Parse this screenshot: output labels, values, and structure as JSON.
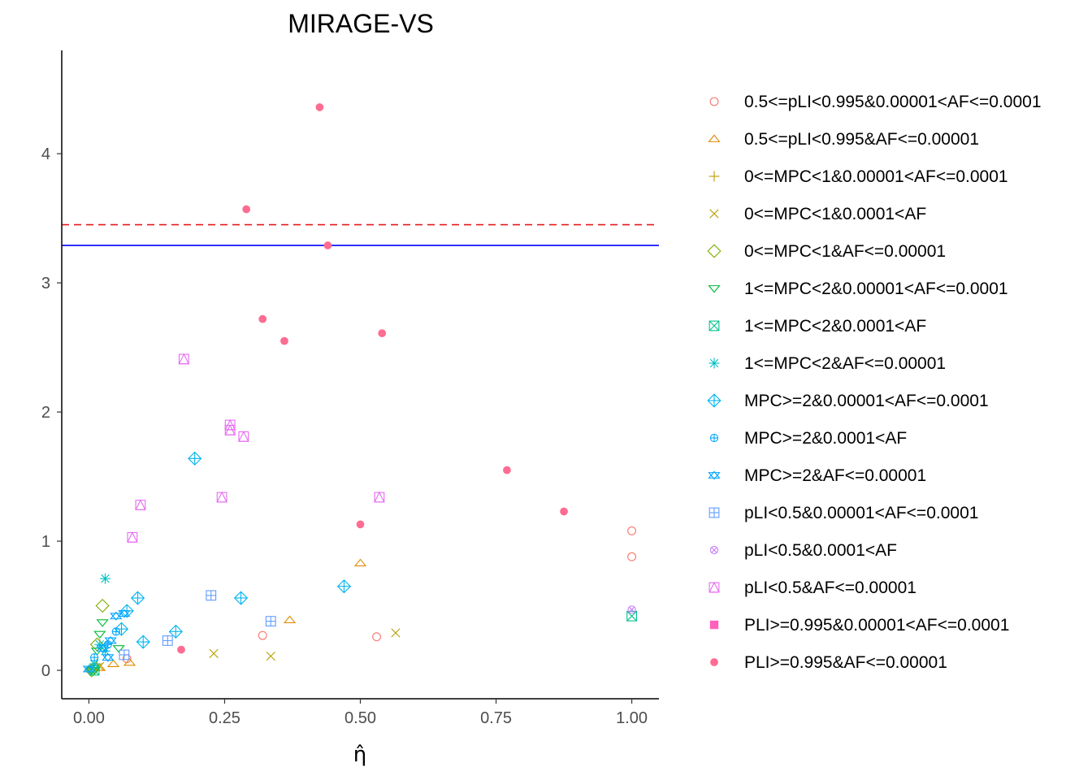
{
  "chart_data": {
    "type": "scatter",
    "title": "MIRAGE-VS",
    "xlabel": "η̂",
    "ylabel": "",
    "xlim": [
      -0.05,
      1.05
    ],
    "ylim": [
      -0.22,
      4.8
    ],
    "x_ticks": [
      "0.00",
      "0.25",
      "0.50",
      "0.75",
      "1.00"
    ],
    "x_tick_values": [
      0,
      0.25,
      0.5,
      0.75,
      1.0
    ],
    "y_ticks": [
      "0",
      "1",
      "2",
      "3",
      "4"
    ],
    "y_tick_values": [
      0,
      1,
      2,
      3,
      4
    ],
    "grid": false,
    "legend_position": "right",
    "reference_lines": [
      {
        "y": 3.45,
        "color": "#e41a1c",
        "style": "dashed"
      },
      {
        "y": 3.29,
        "color": "#0000ff",
        "style": "solid"
      }
    ],
    "series": [
      {
        "name": "0.5<=pLI<0.995&0.00001<AF<=0.0001",
        "color": "#F8766D",
        "shape": "circle-open",
        "points": [
          [
            1.0,
            1.08
          ],
          [
            1.0,
            0.88
          ],
          [
            0.32,
            0.27
          ],
          [
            0.53,
            0.26
          ],
          [
            0.07,
            0.09
          ]
        ]
      },
      {
        "name": "0.5<=pLI<0.995&AF<=0.00001",
        "color": "#DE8C00",
        "shape": "triangle-open",
        "points": [
          [
            0.5,
            0.83
          ],
          [
            0.37,
            0.39
          ],
          [
            0.075,
            0.06
          ],
          [
            0.045,
            0.05
          ],
          [
            0.02,
            0.02
          ]
        ]
      },
      {
        "name": "0<=MPC<1&0.00001<AF<=0.0001",
        "color": "#B79F00",
        "shape": "plus",
        "points": [
          [
            0.01,
            0.02
          ],
          [
            0.005,
            0.01
          ],
          [
            0.015,
            0.05
          ]
        ]
      },
      {
        "name": "0<=MPC<1&0.0001<AF",
        "color": "#B79F00",
        "shape": "cross",
        "points": [
          [
            0.565,
            0.29
          ],
          [
            0.23,
            0.13
          ],
          [
            0.335,
            0.11
          ],
          [
            0.02,
            0.03
          ]
        ]
      },
      {
        "name": "0<=MPC<1&AF<=0.00001",
        "color": "#7CAE00",
        "shape": "diamond-open",
        "points": [
          [
            0.025,
            0.5
          ],
          [
            0.015,
            0.2
          ],
          [
            0.008,
            0.01
          ],
          [
            0.005,
            0.0
          ]
        ]
      },
      {
        "name": "1<=MPC<2&0.00001<AF<=0.0001",
        "color": "#00BA38",
        "shape": "triangle-down-open",
        "points": [
          [
            0.025,
            0.37
          ],
          [
            0.02,
            0.28
          ],
          [
            0.055,
            0.17
          ],
          [
            0.015,
            0.15
          ],
          [
            0.01,
            0.0
          ],
          [
            0.005,
            0.0
          ]
        ]
      },
      {
        "name": "1<=MPC<2&0.0001<AF",
        "color": "#00C08B",
        "shape": "square-cross",
        "points": [
          [
            1.0,
            0.42
          ],
          [
            0.01,
            0.0
          ]
        ]
      },
      {
        "name": "1<=MPC<2&AF<=0.00001",
        "color": "#00BFC4",
        "shape": "asterisk",
        "points": [
          [
            0.03,
            0.71
          ],
          [
            0.02,
            0.2
          ],
          [
            0.03,
            0.15
          ],
          [
            0.01,
            0.05
          ]
        ]
      },
      {
        "name": "MPC>=2&0.00001<AF<=0.0001",
        "color": "#00B4F0",
        "shape": "diamond-plus",
        "points": [
          [
            0.195,
            1.64
          ],
          [
            0.47,
            0.65
          ],
          [
            0.28,
            0.56
          ],
          [
            0.09,
            0.56
          ],
          [
            0.07,
            0.46
          ],
          [
            0.16,
            0.3
          ],
          [
            0.1,
            0.22
          ],
          [
            0.06,
            0.32
          ]
        ]
      },
      {
        "name": "MPC>=2&0.0001<AF",
        "color": "#00A9FF",
        "shape": "circle-plus",
        "points": [
          [
            0.05,
            0.3
          ],
          [
            0.035,
            0.2
          ],
          [
            0.01,
            0.1
          ]
        ]
      },
      {
        "name": "MPC>=2&AF<=0.00001",
        "color": "#00A5FF",
        "shape": "star-of-david",
        "points": [
          [
            0.065,
            0.44
          ],
          [
            0.05,
            0.42
          ],
          [
            0.04,
            0.23
          ],
          [
            0.025,
            0.17
          ],
          [
            0.035,
            0.1
          ],
          [
            0.0,
            0.01
          ]
        ]
      },
      {
        "name": "pLI<0.5&0.00001<AF<=0.0001",
        "color": "#619CFF",
        "shape": "square-plus",
        "points": [
          [
            0.225,
            0.58
          ],
          [
            0.335,
            0.38
          ],
          [
            0.145,
            0.23
          ],
          [
            0.065,
            0.12
          ]
        ]
      },
      {
        "name": "pLI<0.5&0.0001<AF",
        "color": "#C77CFF",
        "shape": "circle-cross",
        "points": [
          [
            1.0,
            0.47
          ]
        ]
      },
      {
        "name": "pLI<0.5&AF<=0.00001",
        "color": "#E76BF3",
        "shape": "square-triangle",
        "points": [
          [
            0.175,
            2.41
          ],
          [
            0.26,
            1.9
          ],
          [
            0.26,
            1.86
          ],
          [
            0.285,
            1.81
          ],
          [
            0.095,
            1.28
          ],
          [
            0.245,
            1.34
          ],
          [
            0.535,
            1.34
          ],
          [
            0.08,
            1.03
          ]
        ]
      },
      {
        "name": "PLI>=0.995&0.00001<AF<=0.0001",
        "color": "#FF62BC",
        "shape": "square-filled",
        "points": []
      },
      {
        "name": "PLI>=0.995&AF<=0.00001",
        "color": "#FF6C91",
        "shape": "circle-filled",
        "points": [
          [
            0.425,
            4.36
          ],
          [
            0.29,
            3.57
          ],
          [
            0.44,
            3.29
          ],
          [
            0.32,
            2.72
          ],
          [
            0.36,
            2.55
          ],
          [
            0.54,
            2.61
          ],
          [
            0.77,
            1.55
          ],
          [
            0.875,
            1.23
          ],
          [
            0.5,
            1.13
          ],
          [
            0.17,
            0.16
          ]
        ]
      }
    ]
  }
}
